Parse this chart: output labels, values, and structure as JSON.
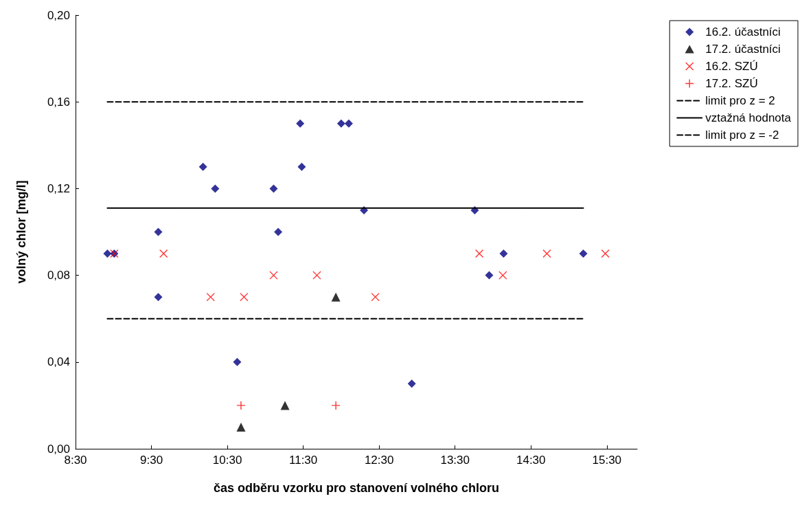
{
  "chart_data": {
    "type": "scatter",
    "xlabel": "čas odběru vzorku pro stanovení volného chloru",
    "ylabel": "volný chlor [mg/l]",
    "xlim": [
      8.5,
      15.9
    ],
    "xticks": [
      {
        "value": 8.5,
        "label": "8:30"
      },
      {
        "value": 9.5,
        "label": "9:30"
      },
      {
        "value": 10.5,
        "label": "10:30"
      },
      {
        "value": 11.5,
        "label": "11:30"
      },
      {
        "value": 12.5,
        "label": "12:30"
      },
      {
        "value": 13.5,
        "label": "13:30"
      },
      {
        "value": 14.5,
        "label": "14:30"
      },
      {
        "value": 15.5,
        "label": "15:30"
      }
    ],
    "ylim": [
      0,
      0.2
    ],
    "yticks": [
      {
        "value": 0,
        "label": "0,00"
      },
      {
        "value": 0.04,
        "label": "0,04"
      },
      {
        "value": 0.08,
        "label": "0,08"
      },
      {
        "value": 0.12,
        "label": "0,12"
      },
      {
        "value": 0.16,
        "label": "0,16"
      },
      {
        "value": 0.2,
        "label": "0,20"
      }
    ],
    "grid": false,
    "legend": "top right",
    "series": [
      {
        "name": "16.2. účastníci",
        "type": "scatter",
        "marker": "diamond",
        "color": "#000080",
        "x": [
          8.92,
          9.01,
          9.59,
          9.59,
          10.18,
          10.34,
          10.63,
          11.11,
          11.17,
          11.46,
          11.48,
          12.0,
          12.1,
          12.3,
          12.93,
          13.76,
          13.95,
          14.14,
          15.19
        ],
        "values": [
          0.09,
          0.09,
          0.07,
          0.1,
          0.13,
          0.12,
          0.04,
          0.12,
          0.1,
          0.15,
          0.13,
          0.15,
          0.15,
          0.11,
          0.03,
          0.11,
          0.08,
          0.09,
          0.09
        ]
      },
      {
        "name": "17.2. účastníci",
        "type": "scatter",
        "marker": "triangle",
        "color": "#000000",
        "x": [
          10.68,
          11.26,
          11.93
        ],
        "values": [
          0.01,
          0.02,
          0.07
        ]
      },
      {
        "name": "16.2. SZÚ",
        "type": "scatter",
        "marker": "cross",
        "color": "#ff0000",
        "x": [
          9.01,
          9.66,
          10.28,
          10.72,
          11.11,
          11.68,
          12.45,
          13.82,
          14.13,
          14.71,
          15.48
        ],
        "values": [
          0.09,
          0.09,
          0.07,
          0.07,
          0.08,
          0.08,
          0.07,
          0.09,
          0.08,
          0.09,
          0.09
        ]
      },
      {
        "name": "17.2. SZÚ",
        "type": "scatter",
        "marker": "plus",
        "color": "#ff0000",
        "x": [
          10.68,
          11.93
        ],
        "values": [
          0.02,
          0.02
        ]
      },
      {
        "name": "limit pro z = 2",
        "type": "line",
        "marker": "none",
        "line_style": "dashed",
        "color": "#000000",
        "x": [
          8.92,
          15.19
        ],
        "values": [
          0.16,
          0.16
        ]
      },
      {
        "name": "vztažná hodnota",
        "type": "line",
        "marker": "none",
        "line_style": "solid",
        "color": "#000000",
        "x": [
          8.92,
          15.19
        ],
        "values": [
          0.111,
          0.111
        ]
      },
      {
        "name": "limit pro z = -2",
        "type": "line",
        "marker": "none",
        "line_style": "dashed",
        "color": "#000000",
        "x": [
          8.92,
          15.19
        ],
        "values": [
          0.06,
          0.06
        ]
      }
    ]
  }
}
